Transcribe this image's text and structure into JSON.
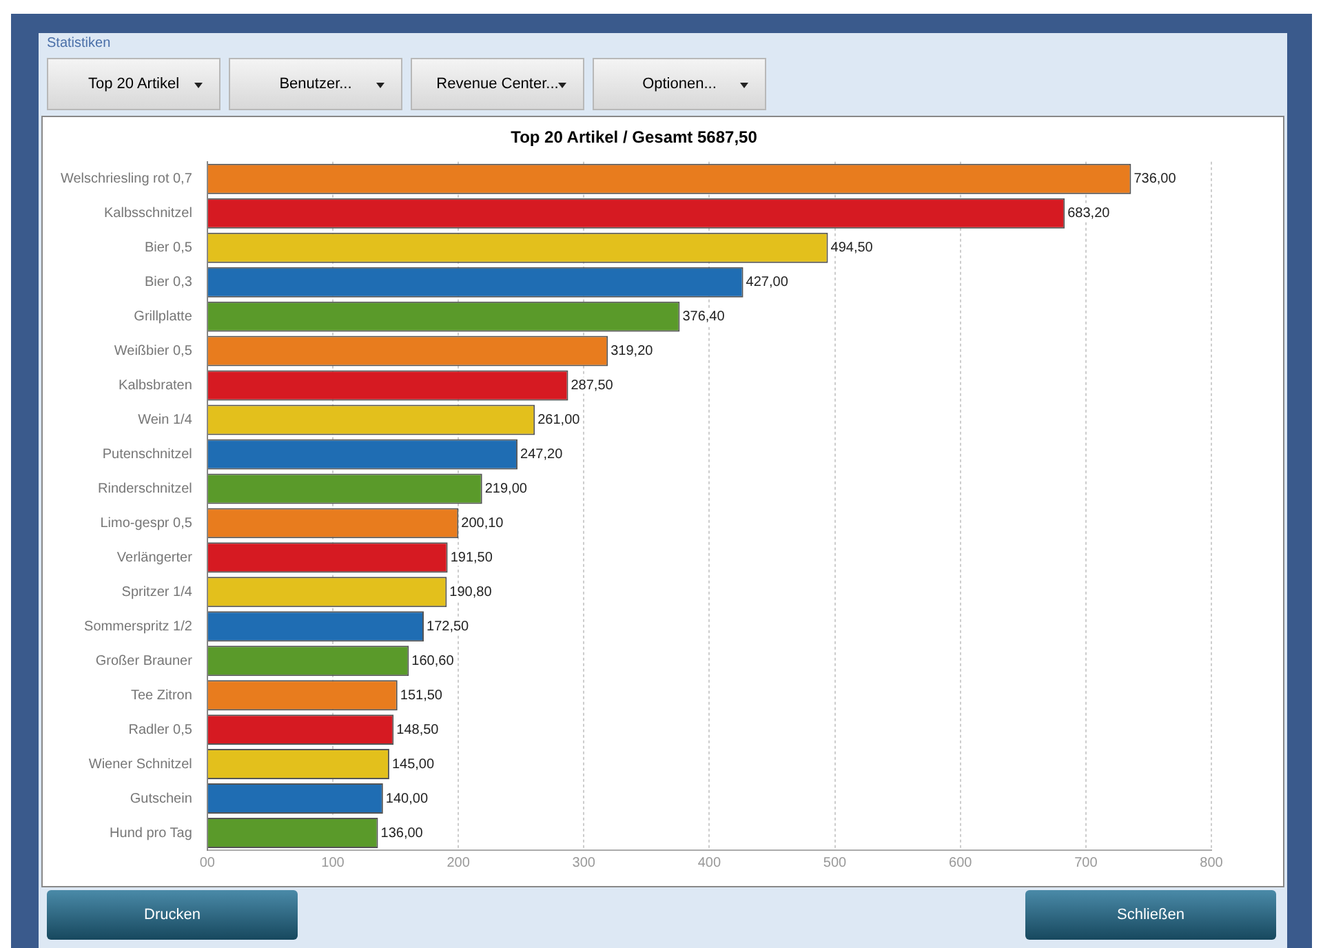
{
  "chart_data": {
    "type": "bar",
    "orientation": "horizontal",
    "title": "Top 20 Artikel / Gesamt 5687,50",
    "categories": [
      "Welschriesling rot 0,7",
      "Kalbsschnitzel",
      "Bier 0,5",
      "Bier 0,3",
      "Grillplatte",
      "Weißbier 0,5",
      "Kalbsbraten",
      "Wein 1/4",
      "Putenschnitzel",
      "Rinderschnitzel",
      "Limo-gespr 0,5",
      "Verlängerter",
      "Spritzer 1/4",
      "Sommerspritz 1/2",
      "Großer Brauner",
      "Tee Zitron",
      "Radler 0,5",
      "Wiener Schnitzel",
      "Gutschein",
      "Hund pro Tag"
    ],
    "values": [
      736,
      683.2,
      494.5,
      427,
      376.4,
      319.2,
      287.5,
      261,
      247.2,
      219,
      200.1,
      191.5,
      190.8,
      172.5,
      160.6,
      151.5,
      148.5,
      145,
      140,
      136
    ],
    "value_labels": [
      "736,00",
      "683,20",
      "494,50",
      "427,00",
      "376,40",
      "319,20",
      "287,50",
      "261,00",
      "247,20",
      "219,00",
      "200,10",
      "191,50",
      "190,80",
      "172,50",
      "160,60",
      "151,50",
      "148,50",
      "145,00",
      "140,00",
      "136,00"
    ],
    "colors": [
      "#e87c1e",
      "#d61a22",
      "#e3c01c",
      "#1f6db3",
      "#5a9a2a",
      "#e87c1e",
      "#d61a22",
      "#e3c01c",
      "#1f6db3",
      "#5a9a2a",
      "#e87c1e",
      "#d61a22",
      "#e3c01c",
      "#1f6db3",
      "#5a9a2a",
      "#e87c1e",
      "#d61a22",
      "#e3c01c",
      "#1f6db3",
      "#5a9a2a"
    ],
    "xlim": [
      0,
      800
    ],
    "xticks": [
      {
        "value": 0,
        "label": "00"
      },
      100,
      200,
      300,
      400,
      500,
      600,
      700,
      800
    ],
    "grid": "x",
    "legend": false,
    "annotations": [
      "Statistiken",
      "Top 20 Artikel",
      "Benutzer...",
      "Revenue Center...",
      "Optionen...",
      "Drucken",
      "Schließen"
    ]
  }
}
